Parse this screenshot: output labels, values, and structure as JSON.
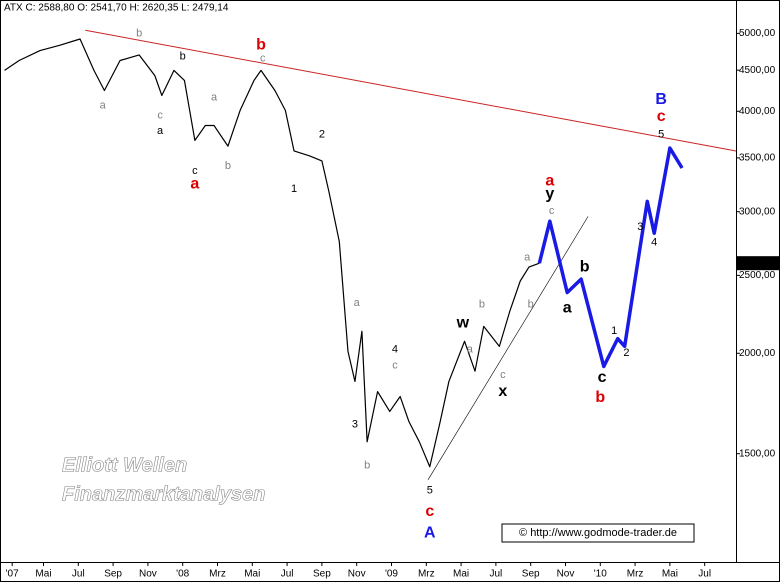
{
  "chart_data": {
    "type": "line",
    "header": "ATX C: 2588,80 O: 2541,70 H: 2620,35 L: 2479,14",
    "watermark": [
      "Elliott Wellen",
      "Finanzmarktanalysen"
    ],
    "copyright": "© http://www.godmode-trader.de",
    "last_label": {
      "value": 2588.8,
      "label": "2588,80"
    },
    "log_scale": true,
    "xlim": [
      1.5,
      43.8
    ],
    "ylim": [
      1100,
      5270
    ],
    "xticks": [
      {
        "value": 2.2,
        "label": "'07"
      },
      {
        "value": 4,
        "label": "Mai"
      },
      {
        "value": 6,
        "label": "Jul"
      },
      {
        "value": 8,
        "label": "Sep"
      },
      {
        "value": 10,
        "label": "Nov"
      },
      {
        "value": 12,
        "label": "'08"
      },
      {
        "value": 14,
        "label": "Mrz"
      },
      {
        "value": 16,
        "label": "Mai"
      },
      {
        "value": 18,
        "label": "Jul"
      },
      {
        "value": 20,
        "label": "Sep"
      },
      {
        "value": 22,
        "label": "Nov"
      },
      {
        "value": 24,
        "label": "'09"
      },
      {
        "value": 26,
        "label": "Mrz"
      },
      {
        "value": 28,
        "label": "Mai"
      },
      {
        "value": 30,
        "label": "Jul"
      },
      {
        "value": 32,
        "label": "Sep"
      },
      {
        "value": 34,
        "label": "Nov"
      },
      {
        "value": 36,
        "label": "'10"
      },
      {
        "value": 38,
        "label": "Mrz"
      },
      {
        "value": 40,
        "label": "Mai"
      },
      {
        "value": 42,
        "label": "Jul"
      }
    ],
    "yticks": [
      {
        "value": 1500,
        "label": "1500,00"
      },
      {
        "value": 2000,
        "label": "2000,00"
      },
      {
        "value": 2500,
        "label": "2500,00"
      },
      {
        "value": 3000,
        "label": "3000,00"
      },
      {
        "value": 3500,
        "label": "3500,00"
      },
      {
        "value": 4000,
        "label": "4000,00"
      },
      {
        "value": 4500,
        "label": "4500,00"
      },
      {
        "value": 5000,
        "label": "5000,00"
      }
    ],
    "price": {
      "color": "#000000",
      "x": [
        1.76,
        2.6,
        3.8,
        4.9,
        6.1,
        6.9,
        7.5,
        8.4,
        9.5,
        10.4,
        10.8,
        11.5,
        12.1,
        12.7,
        13.3,
        13.8,
        14.6,
        15.3,
        16.1,
        16.5,
        17.3,
        17.9,
        18.4,
        19.3,
        20.0,
        20.4,
        21.0,
        21.5,
        21.9,
        22.3,
        22.6,
        23.2,
        23.9,
        24.5,
        25.0,
        25.6,
        26.2,
        26.8,
        27.3,
        28.2,
        28.8,
        29.3,
        30.2,
        30.8,
        31.4,
        31.9,
        32.5
      ],
      "values": [
        4497,
        4626,
        4760,
        4830,
        4920,
        4497,
        4245,
        4626,
        4700,
        4430,
        4185,
        4497,
        4370,
        3680,
        3840,
        3840,
        3620,
        4010,
        4370,
        4497,
        4245,
        4010,
        3570,
        3520,
        3470,
        3180,
        2755,
        2010,
        1845,
        2130,
        1552,
        1792,
        1693,
        1767,
        1645,
        1552,
        1445,
        1645,
        1845,
        2070,
        1900,
        2160,
        2040,
        2256,
        2460,
        2560,
        2588.8
      ]
    },
    "forecast": {
      "color": "#1a1ae6",
      "x": [
        32.5,
        33.1,
        34.1,
        34.9,
        36.2,
        37.0,
        37.4,
        38.7,
        39.1,
        40.0,
        40.7
      ],
      "values": [
        2588.8,
        2920,
        2380,
        2473,
        1926,
        2085,
        2040,
        3090,
        2820,
        3600,
        3400
      ]
    },
    "trend_red": {
      "color": "#cc2222",
      "x": [
        6.4,
        43.8
      ],
      "values": [
        5045,
        3570
      ]
    },
    "trend_black": {
      "color": "#000000",
      "x": [
        26.1,
        35.3
      ],
      "values": [
        1392,
        2960
      ]
    },
    "annotations": [
      {
        "text": "a",
        "x": 7.4,
        "y": 4065,
        "color": "#808080",
        "size": "small"
      },
      {
        "text": "b",
        "x": 9.5,
        "y": 5000,
        "color": "#808080",
        "size": "small"
      },
      {
        "text": "c",
        "x": 10.7,
        "y": 3950,
        "color": "#808080",
        "size": "small"
      },
      {
        "text": "a",
        "x": 13.8,
        "y": 4160,
        "color": "#808080",
        "size": "small"
      },
      {
        "text": "b",
        "x": 14.6,
        "y": 3420,
        "color": "#808080",
        "size": "small"
      },
      {
        "text": "c",
        "x": 16.6,
        "y": 4650,
        "color": "#808080",
        "size": "small"
      },
      {
        "text": "a",
        "x": 22.0,
        "y": 2310,
        "color": "#808080",
        "size": "small"
      },
      {
        "text": "c",
        "x": 24.2,
        "y": 1930,
        "color": "#808080",
        "size": "small"
      },
      {
        "text": "b",
        "x": 22.6,
        "y": 1450,
        "color": "#808080",
        "size": "small"
      },
      {
        "text": "b",
        "x": 29.2,
        "y": 2300,
        "color": "#808080",
        "size": "small"
      },
      {
        "text": "a",
        "x": 28.5,
        "y": 2020,
        "color": "#808080",
        "size": "small"
      },
      {
        "text": "c",
        "x": 30.4,
        "y": 1880,
        "color": "#808080",
        "size": "small"
      },
      {
        "text": "b",
        "x": 32.0,
        "y": 2300,
        "color": "#808080",
        "size": "small"
      },
      {
        "text": "a",
        "x": 31.8,
        "y": 2630,
        "color": "#808080",
        "size": "small"
      },
      {
        "text": "c",
        "x": 33.2,
        "y": 3005,
        "color": "#808080",
        "size": "small"
      },
      {
        "text": "b",
        "x": 12.0,
        "y": 4680,
        "color": "#000000",
        "size": "small"
      },
      {
        "text": "a",
        "x": 10.7,
        "y": 3780,
        "color": "#000000",
        "size": "small"
      },
      {
        "text": "c",
        "x": 12.7,
        "y": 3370,
        "color": "#000000",
        "size": "small"
      },
      {
        "text": "2",
        "x": 20.0,
        "y": 3740,
        "color": "#000000",
        "size": "small"
      },
      {
        "text": "1",
        "x": 18.4,
        "y": 3200,
        "color": "#000000",
        "size": "small"
      },
      {
        "text": "4",
        "x": 24.2,
        "y": 2020,
        "color": "#000000",
        "size": "small"
      },
      {
        "text": "3",
        "x": 21.9,
        "y": 1630,
        "color": "#000000",
        "size": "small"
      },
      {
        "text": "5",
        "x": 26.2,
        "y": 1350,
        "color": "#000000",
        "size": "small"
      },
      {
        "text": "5",
        "x": 39.5,
        "y": 3740,
        "color": "#000000",
        "size": "small"
      },
      {
        "text": "3",
        "x": 38.3,
        "y": 2870,
        "color": "#000000",
        "size": "small"
      },
      {
        "text": "4",
        "x": 39.1,
        "y": 2745,
        "color": "#000000",
        "size": "small"
      },
      {
        "text": "1",
        "x": 36.8,
        "y": 2130,
        "color": "#000000",
        "size": "small"
      },
      {
        "text": "2",
        "x": 37.5,
        "y": 2000,
        "color": "#000000",
        "size": "small"
      },
      {
        "text": "w",
        "x": 28.1,
        "y": 2180,
        "color": "#000000",
        "size": "big"
      },
      {
        "text": "x",
        "x": 30.4,
        "y": 1790,
        "color": "#000000",
        "size": "big"
      },
      {
        "text": "y",
        "x": 33.1,
        "y": 3155,
        "color": "#000000",
        "size": "big"
      },
      {
        "text": "b",
        "x": 35.1,
        "y": 2560,
        "color": "#000000",
        "size": "big"
      },
      {
        "text": "a",
        "x": 34.1,
        "y": 2275,
        "color": "#000000",
        "size": "big"
      },
      {
        "text": "c",
        "x": 36.1,
        "y": 1865,
        "color": "#000000",
        "size": "big"
      },
      {
        "text": "b",
        "x": 16.5,
        "y": 4830,
        "color": "#dd0000",
        "size": "big"
      },
      {
        "text": "a",
        "x": 12.7,
        "y": 3245,
        "color": "#dd0000",
        "size": "big"
      },
      {
        "text": "a",
        "x": 33.1,
        "y": 3275,
        "color": "#dd0000",
        "size": "big"
      },
      {
        "text": "c",
        "x": 26.2,
        "y": 1270,
        "color": "#dd0000",
        "size": "big"
      },
      {
        "text": "b",
        "x": 36.0,
        "y": 1760,
        "color": "#dd0000",
        "size": "big"
      },
      {
        "text": "c",
        "x": 39.5,
        "y": 3940,
        "color": "#dd0000",
        "size": "big"
      },
      {
        "text": "B",
        "x": 39.5,
        "y": 4135,
        "color": "#1a1ae6",
        "size": "big"
      },
      {
        "text": "A",
        "x": 26.2,
        "y": 1195,
        "color": "#1a1ae6",
        "size": "big"
      }
    ]
  }
}
